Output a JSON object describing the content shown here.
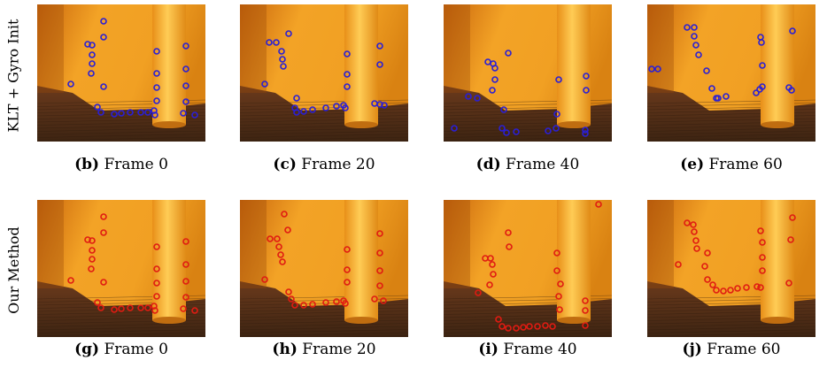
{
  "rows": [
    {
      "label": "KLT + Gyro Init",
      "marker_color": "#2a1fd6",
      "panels": [
        {
          "tag": "(b)",
          "frame": "Frame 0",
          "pts": [
            [
              38,
              90
            ],
            [
              57,
              45
            ],
            [
              62,
              46
            ],
            [
              62,
              57
            ],
            [
              62,
              67
            ],
            [
              61,
              78
            ],
            [
              75,
              19
            ],
            [
              75,
              37
            ],
            [
              75,
              93
            ],
            [
              68,
              116
            ],
            [
              72,
              122
            ],
            [
              87,
              124
            ],
            [
              95,
              123
            ],
            [
              105,
              122
            ],
            [
              117,
              122
            ],
            [
              125,
              122
            ],
            [
              132,
              120
            ],
            [
              133,
              125
            ],
            [
              135,
              53
            ],
            [
              135,
              78
            ],
            [
              135,
              94
            ],
            [
              135,
              109
            ],
            [
              168,
              47
            ],
            [
              168,
              73
            ],
            [
              168,
              92
            ],
            [
              168,
              110
            ],
            [
              165,
              123
            ],
            [
              178,
              125
            ]
          ]
        },
        {
          "tag": "(c)",
          "frame": "Frame 20",
          "pts": [
            [
              33,
              43
            ],
            [
              41,
              43
            ],
            [
              47,
              53
            ],
            [
              48,
              62
            ],
            [
              49,
              70
            ],
            [
              55,
              33
            ],
            [
              28,
              90
            ],
            [
              64,
              106
            ],
            [
              62,
              117
            ],
            [
              64,
              122
            ],
            [
              72,
              121
            ],
            [
              82,
              119
            ],
            [
              97,
              117
            ],
            [
              109,
              115
            ],
            [
              117,
              114
            ],
            [
              119,
              117
            ],
            [
              121,
              56
            ],
            [
              121,
              79
            ],
            [
              121,
              93
            ],
            [
              158,
              47
            ],
            [
              158,
              68
            ],
            [
              152,
              112
            ],
            [
              158,
              113
            ],
            [
              163,
              114
            ]
          ]
        },
        {
          "tag": "(d)",
          "frame": "Frame 40",
          "pts": [
            [
              50,
              65
            ],
            [
              56,
              67
            ],
            [
              58,
              72
            ],
            [
              58,
              85
            ],
            [
              55,
              97
            ],
            [
              73,
              55
            ],
            [
              28,
              104
            ],
            [
              38,
              106
            ],
            [
              68,
              119
            ],
            [
              66,
              140
            ],
            [
              71,
              145
            ],
            [
              82,
              144
            ],
            [
              118,
              143
            ],
            [
              127,
              140
            ],
            [
              128,
              124
            ],
            [
              130,
              85
            ],
            [
              161,
              81
            ],
            [
              161,
              97
            ],
            [
              160,
              142
            ],
            [
              160,
              146
            ],
            [
              12,
              140
            ]
          ]
        },
        {
          "tag": "(e)",
          "frame": "Frame 60",
          "pts": [
            [
              45,
              26
            ],
            [
              53,
              26
            ],
            [
              53,
              36
            ],
            [
              55,
              46
            ],
            [
              58,
              57
            ],
            [
              5,
              73
            ],
            [
              12,
              73
            ],
            [
              67,
              75
            ],
            [
              73,
              95
            ],
            [
              78,
              106
            ],
            [
              80,
              106
            ],
            [
              89,
              104
            ],
            [
              123,
              100
            ],
            [
              127,
              96
            ],
            [
              128,
              37
            ],
            [
              129,
              43
            ],
            [
              130,
              69
            ],
            [
              130,
              93
            ],
            [
              160,
              94
            ],
            [
              163,
              97
            ],
            [
              164,
              30
            ],
            [
              195,
              8
            ]
          ]
        }
      ]
    },
    {
      "label": "Our Method",
      "marker_color": "#e01b12",
      "panels": [
        {
          "tag": "(g)",
          "frame": "Frame 0",
          "pts": [
            [
              38,
              91
            ],
            [
              57,
              45
            ],
            [
              62,
              46
            ],
            [
              62,
              57
            ],
            [
              62,
              67
            ],
            [
              61,
              78
            ],
            [
              75,
              19
            ],
            [
              75,
              37
            ],
            [
              75,
              93
            ],
            [
              68,
              116
            ],
            [
              72,
              122
            ],
            [
              87,
              124
            ],
            [
              95,
              123
            ],
            [
              105,
              122
            ],
            [
              117,
              122
            ],
            [
              125,
              122
            ],
            [
              132,
              120
            ],
            [
              133,
              125
            ],
            [
              135,
              53
            ],
            [
              135,
              78
            ],
            [
              135,
              94
            ],
            [
              135,
              109
            ],
            [
              168,
              47
            ],
            [
              168,
              73
            ],
            [
              168,
              92
            ],
            [
              168,
              110
            ],
            [
              165,
              123
            ],
            [
              178,
              125
            ]
          ]
        },
        {
          "tag": "(h)",
          "frame": "Frame 20",
          "pts": [
            [
              34,
              44
            ],
            [
              42,
              44
            ],
            [
              44,
              53
            ],
            [
              46,
              62
            ],
            [
              48,
              70
            ],
            [
              54,
              34
            ],
            [
              50,
              16
            ],
            [
              28,
              90
            ],
            [
              55,
              104
            ],
            [
              58,
              112
            ],
            [
              62,
              119
            ],
            [
              72,
              119
            ],
            [
              82,
              118
            ],
            [
              97,
              116
            ],
            [
              109,
              115
            ],
            [
              117,
              114
            ],
            [
              119,
              117
            ],
            [
              121,
              56
            ],
            [
              121,
              79
            ],
            [
              121,
              93
            ],
            [
              158,
              38
            ],
            [
              158,
              60
            ],
            [
              158,
              80
            ],
            [
              158,
              97
            ],
            [
              152,
              112
            ],
            [
              162,
              114
            ]
          ]
        },
        {
          "tag": "(i)",
          "frame": "Frame 40",
          "pts": [
            [
              47,
              66
            ],
            [
              53,
              66
            ],
            [
              55,
              73
            ],
            [
              56,
              84
            ],
            [
              52,
              96
            ],
            [
              73,
              37
            ],
            [
              74,
              53
            ],
            [
              39,
              105
            ],
            [
              62,
              135
            ],
            [
              66,
              143
            ],
            [
              73,
              145
            ],
            [
              82,
              145
            ],
            [
              90,
              144
            ],
            [
              97,
              143
            ],
            [
              106,
              143
            ],
            [
              115,
              142
            ],
            [
              123,
              143
            ],
            [
              128,
              60
            ],
            [
              128,
              80
            ],
            [
              132,
              95
            ],
            [
              130,
              109
            ],
            [
              131,
              124
            ],
            [
              160,
              114
            ],
            [
              160,
              125
            ],
            [
              160,
              142
            ],
            [
              175,
              5
            ]
          ]
        },
        {
          "tag": "(j)",
          "frame": "Frame 60",
          "pts": [
            [
              45,
              26
            ],
            [
              52,
              28
            ],
            [
              53,
              36
            ],
            [
              55,
              46
            ],
            [
              56,
              55
            ],
            [
              35,
              73
            ],
            [
              68,
              60
            ],
            [
              65,
              75
            ],
            [
              68,
              90
            ],
            [
              74,
              96
            ],
            [
              78,
              102
            ],
            [
              86,
              103
            ],
            [
              94,
              102
            ],
            [
              102,
              100
            ],
            [
              112,
              99
            ],
            [
              124,
              98
            ],
            [
              128,
              99
            ],
            [
              128,
              35
            ],
            [
              130,
              48
            ],
            [
              130,
              65
            ],
            [
              130,
              80
            ],
            [
              160,
              94
            ],
            [
              162,
              45
            ],
            [
              164,
              20
            ]
          ]
        }
      ]
    }
  ]
}
